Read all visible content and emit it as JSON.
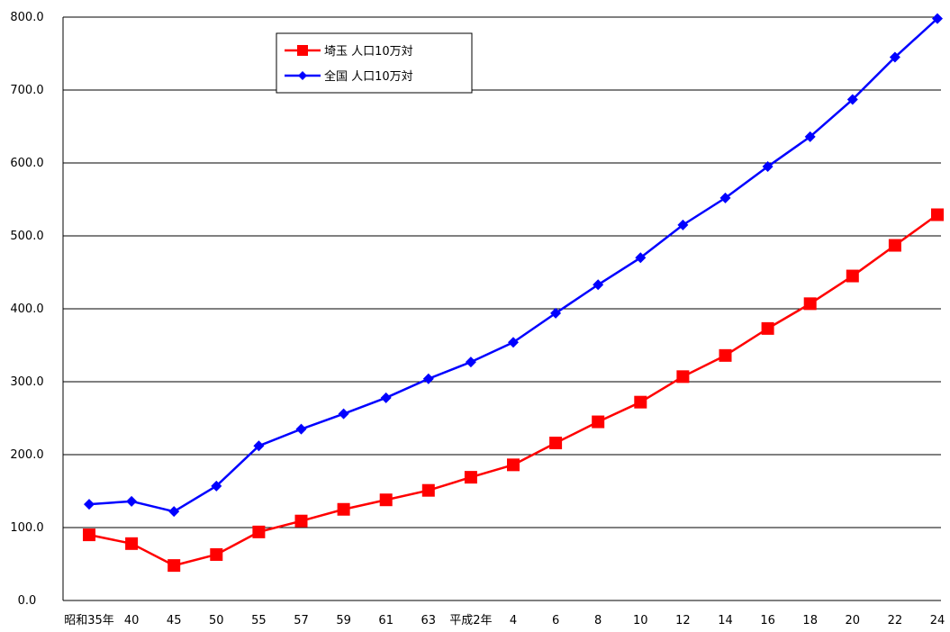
{
  "chart_data": {
    "type": "line",
    "categories": [
      "昭和35年",
      "40",
      "45",
      "50",
      "55",
      "57",
      "59",
      "61",
      "63",
      "平成2年",
      "4",
      "6",
      "8",
      "10",
      "12",
      "14",
      "16",
      "18",
      "20",
      "22",
      "24"
    ],
    "series": [
      {
        "name": "埼玉 人口10万対",
        "color": "#ff0000",
        "marker": "square",
        "values": [
          90,
          78,
          48,
          63,
          94,
          109,
          125,
          138,
          151,
          169,
          186,
          216,
          245,
          272,
          307,
          336,
          373,
          407,
          445,
          487,
          529
        ]
      },
      {
        "name": "全国 人口10万対",
        "color": "#0000ff",
        "marker": "diamond",
        "values": [
          132,
          136,
          122,
          157,
          212,
          235,
          256,
          278,
          304,
          327,
          354,
          394,
          433,
          470,
          515,
          552,
          595,
          636,
          687,
          745,
          798
        ]
      }
    ],
    "ylim": [
      0,
      800
    ],
    "yticks": [
      "0.0",
      "100.0",
      "200.0",
      "300.0",
      "400.0",
      "500.0",
      "600.0",
      "700.0",
      "800.0"
    ],
    "ytick_values": [
      0,
      100,
      200,
      300,
      400,
      500,
      600,
      700,
      800
    ],
    "grid": true,
    "legend_position": "top-left-inside"
  }
}
